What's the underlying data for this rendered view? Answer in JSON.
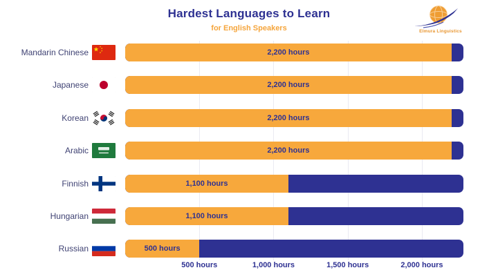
{
  "header": {
    "title": "Hardest Languages to Learn",
    "subtitle": "for English Speakers",
    "brand": "Elmura Linguistics"
  },
  "colors": {
    "navy": "#2E3192",
    "orange": "#F7A83C",
    "grid": "#EAEAF2",
    "background": "#FFFFFF",
    "subtitle_orange": "#F5A53C"
  },
  "chart_data": {
    "type": "bar",
    "orientation": "horizontal",
    "title": "Hardest Languages to Learn",
    "subtitle": "for English Speakers",
    "unit": "hours",
    "xlim": [
      0,
      2280
    ],
    "grid": true,
    "legend": false,
    "categories": [
      "Mandarin Chinese",
      "Japanese",
      "Korean",
      "Arabic",
      "Finnish",
      "Hungarian",
      "Russian"
    ],
    "values": [
      2200,
      2200,
      2200,
      2200,
      1100,
      1100,
      500
    ],
    "value_labels": [
      "2,200 hours",
      "2,200 hours",
      "2,200 hours",
      "2,200 hours",
      "1,100 hours",
      "1,100 hours",
      "500 hours"
    ],
    "flags": [
      "china-flag",
      "japan-flag",
      "south-korea-flag",
      "saudi-arabia-flag",
      "finland-flag",
      "hungary-flag",
      "russia-flag"
    ],
    "x_ticks": [
      {
        "value": 500,
        "label": "500 hours"
      },
      {
        "value": 1000,
        "label": "1,000 hours"
      },
      {
        "value": 1500,
        "label": "1,500 hours"
      },
      {
        "value": 2000,
        "label": "2,000 hours"
      }
    ]
  }
}
